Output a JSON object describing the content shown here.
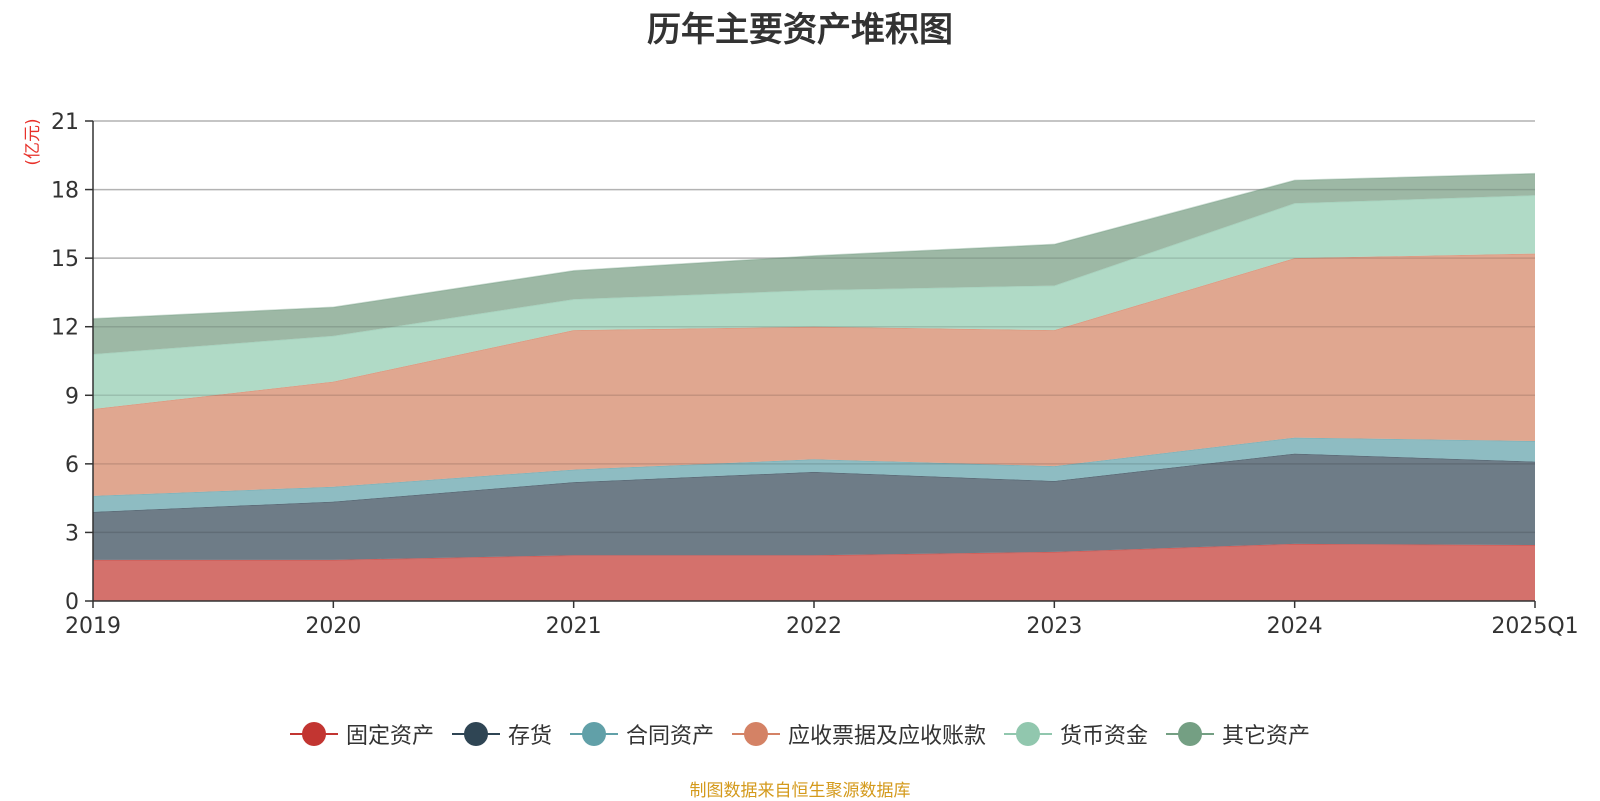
{
  "chart_data": {
    "type": "area",
    "stacked": true,
    "title": "历年主要资产堆积图",
    "unit_label": "(亿元)",
    "categories": [
      "2019",
      "2020",
      "2021",
      "2022",
      "2023",
      "2024",
      "2025Q1"
    ],
    "ylim": [
      0,
      21
    ],
    "yticks": [
      0,
      3,
      6,
      9,
      12,
      15,
      18,
      21
    ],
    "grid": true,
    "legend_position": "bottom",
    "series": [
      {
        "name": "固定资产",
        "color": "#c23531",
        "fill": "#d4716c",
        "values": [
          1.8,
          1.8,
          2.0,
          2.0,
          2.15,
          2.5,
          2.45
        ]
      },
      {
        "name": "存货",
        "color": "#2f4554",
        "fill": "#6e7c87",
        "values": [
          2.1,
          2.55,
          3.2,
          3.65,
          3.1,
          3.95,
          3.65
        ]
      },
      {
        "name": "合同资产",
        "color": "#61a0a8",
        "fill": "#8ebcc2",
        "values": [
          0.7,
          0.65,
          0.55,
          0.55,
          0.65,
          0.7,
          0.9
        ]
      },
      {
        "name": "应收票据及应收账款",
        "color": "#d48265",
        "fill": "#e0a790",
        "values": [
          3.8,
          4.6,
          6.1,
          5.8,
          5.95,
          7.85,
          8.2
        ]
      },
      {
        "name": "货币资金",
        "color": "#91c7ae",
        "fill": "#b0dac6",
        "values": [
          2.4,
          2.0,
          1.35,
          1.6,
          1.95,
          2.4,
          2.55
        ]
      },
      {
        "name": "其它资产",
        "color": "#749f83",
        "fill": "#9db8a5",
        "values": [
          1.55,
          1.25,
          1.25,
          1.5,
          1.8,
          1.0,
          0.95
        ]
      }
    ]
  },
  "footer": {
    "source": "制图数据来自恒生聚源数据库"
  }
}
